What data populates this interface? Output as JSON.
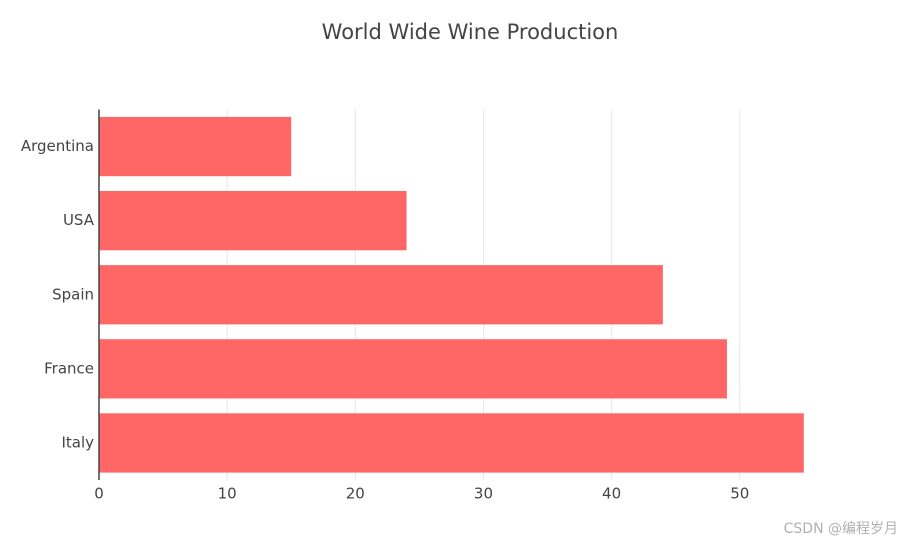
{
  "chart_data": {
    "type": "hbar",
    "title": "World Wide Wine Production",
    "categories": [
      "Argentina",
      "USA",
      "Spain",
      "France",
      "Italy"
    ],
    "values": [
      15,
      24,
      44,
      49,
      55
    ],
    "color": "#ff6666",
    "xlim": [
      0,
      57.9
    ],
    "xticks": [
      0,
      10,
      20,
      30,
      40,
      50
    ],
    "grid": true
  },
  "watermark": "CSDN @编程岁月"
}
